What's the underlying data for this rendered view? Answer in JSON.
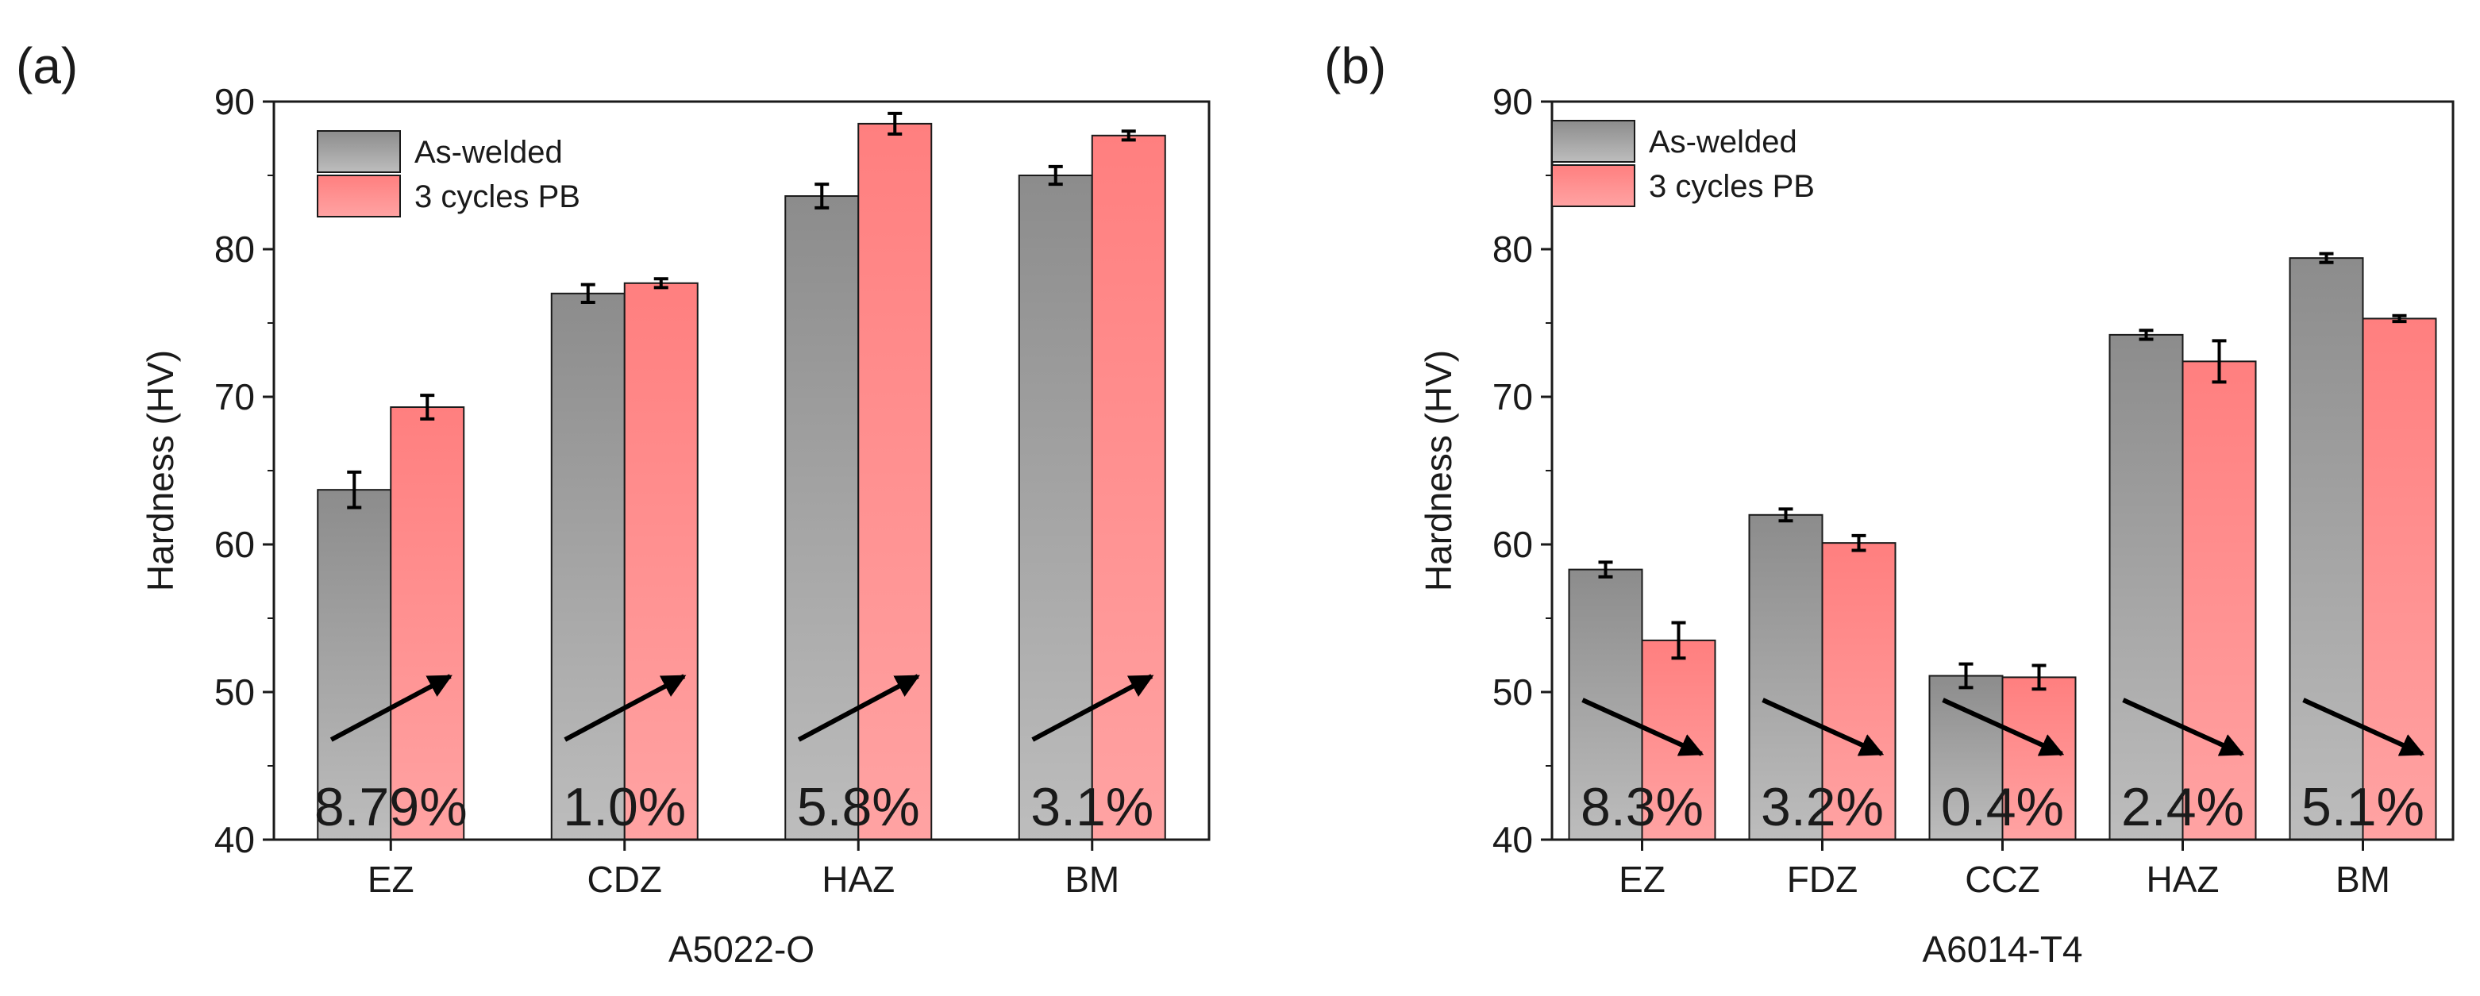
{
  "chart_data": [
    {
      "type": "bar",
      "panel_label": "(a)",
      "xlabel": "A5022-O",
      "ylabel": "Hardness (HV)",
      "ylim": [
        40,
        90
      ],
      "yticks": [
        40,
        50,
        60,
        70,
        80,
        90
      ],
      "categories": [
        "EZ",
        "CDZ",
        "HAZ",
        "BM"
      ],
      "series": [
        {
          "name": "As-welded",
          "values": [
            63.7,
            77.0,
            83.6,
            85.0
          ],
          "errors": [
            1.2,
            0.6,
            0.8,
            0.6
          ]
        },
        {
          "name": "3 cycles PB",
          "values": [
            69.3,
            77.7,
            88.5,
            87.7
          ],
          "errors": [
            0.8,
            0.3,
            0.7,
            0.3
          ]
        }
      ],
      "annotations": [
        "8.79%",
        "1.0%",
        "5.8%",
        "3.1%"
      ],
      "trend": [
        "up",
        "up",
        "up",
        "up"
      ],
      "legend_position": "top-left",
      "grid": false
    },
    {
      "type": "bar",
      "panel_label": "(b)",
      "xlabel": "A6014-T4",
      "ylabel": "Hardness (HV)",
      "ylim": [
        40,
        90
      ],
      "yticks": [
        40,
        50,
        60,
        70,
        80,
        90
      ],
      "categories": [
        "EZ",
        "FDZ",
        "CCZ",
        "HAZ",
        "BM"
      ],
      "series": [
        {
          "name": "As-welded",
          "values": [
            58.3,
            62.0,
            51.1,
            74.2,
            79.4
          ],
          "errors": [
            0.5,
            0.4,
            0.8,
            0.3,
            0.3
          ]
        },
        {
          "name": "3 cycles PB",
          "values": [
            53.5,
            60.1,
            51.0,
            72.4,
            75.3
          ],
          "errors": [
            1.2,
            0.5,
            0.8,
            1.4,
            0.2
          ]
        }
      ],
      "annotations": [
        "8.3%",
        "3.2%",
        "0.4%",
        "2.4%",
        "5.1%"
      ],
      "trend": [
        "down",
        "down",
        "down",
        "down",
        "down"
      ],
      "legend_position": "top-left",
      "grid": false
    }
  ],
  "colors": {
    "as_welded_top": "#8c8c8c",
    "as_welded_bottom": "#bdbdbd",
    "pb_top": "#ff7f7f",
    "pb_bottom": "#ffa3a3",
    "axis": "#1a1a1a"
  }
}
